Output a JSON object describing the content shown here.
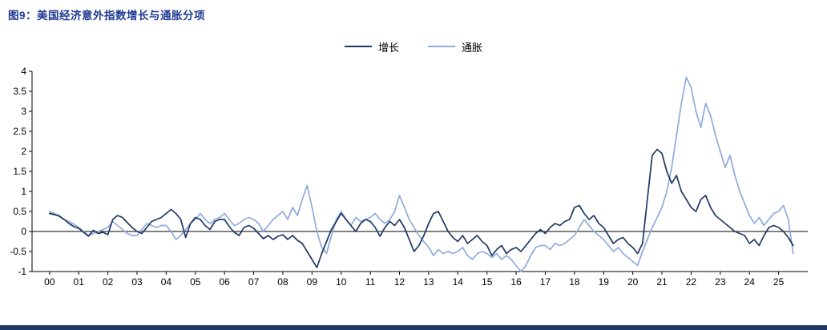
{
  "page": {
    "title": "图9：美国经济意外指数增长与通胀分项",
    "title_color": "#1e3a93",
    "footer_bar_color": "#1f3864"
  },
  "chart_data": {
    "type": "line",
    "title": "美国经济意外指数增长与通胀分项",
    "xlabel": "",
    "ylabel": "",
    "grid": false,
    "legend_position": "top-center",
    "ylim": [
      -1,
      4
    ],
    "y_ticks": [
      4,
      3.5,
      3,
      2.5,
      2,
      1.5,
      1,
      0.5,
      0,
      -0.5,
      -1
    ],
    "x_min": 1999.4,
    "x_max": 2026.0,
    "x_tick_start_year": 2000,
    "x_tick_labels": [
      "00",
      "01",
      "02",
      "03",
      "04",
      "05",
      "06",
      "07",
      "08",
      "09",
      "10",
      "11",
      "12",
      "13",
      "14",
      "15",
      "16",
      "17",
      "18",
      "19",
      "20",
      "21",
      "22",
      "23",
      "24",
      "25"
    ],
    "x_start": 2000,
    "x_step": 0.1666667,
    "series": [
      {
        "name": "增长",
        "key": "growth",
        "color": "#1f3864",
        "values": [
          0.45,
          0.42,
          0.38,
          0.3,
          0.2,
          0.12,
          0.08,
          -0.02,
          -0.12,
          0.03,
          -0.05,
          -0.02,
          -0.08,
          0.3,
          0.4,
          0.35,
          0.22,
          0.1,
          0.0,
          -0.05,
          0.1,
          0.25,
          0.3,
          0.35,
          0.45,
          0.55,
          0.45,
          0.3,
          -0.15,
          0.2,
          0.35,
          0.3,
          0.15,
          0.05,
          0.25,
          0.3,
          0.3,
          0.12,
          -0.02,
          -0.1,
          0.1,
          0.15,
          0.08,
          -0.05,
          -0.18,
          -0.1,
          -0.2,
          -0.12,
          -0.08,
          -0.2,
          -0.1,
          -0.22,
          -0.3,
          -0.5,
          -0.7,
          -0.9,
          -0.55,
          -0.25,
          0.05,
          0.25,
          0.45,
          0.3,
          0.15,
          0.0,
          0.2,
          0.3,
          0.25,
          0.1,
          -0.12,
          0.1,
          0.25,
          0.15,
          0.3,
          0.1,
          -0.2,
          -0.5,
          -0.35,
          -0.1,
          0.2,
          0.45,
          0.5,
          0.25,
          0.0,
          -0.15,
          -0.25,
          -0.1,
          -0.3,
          -0.2,
          -0.1,
          -0.25,
          -0.35,
          -0.6,
          -0.45,
          -0.35,
          -0.55,
          -0.45,
          -0.4,
          -0.5,
          -0.35,
          -0.2,
          -0.05,
          0.05,
          -0.05,
          0.1,
          0.2,
          0.15,
          0.25,
          0.3,
          0.6,
          0.65,
          0.45,
          0.3,
          0.4,
          0.2,
          0.1,
          -0.1,
          -0.3,
          -0.2,
          -0.15,
          -0.3,
          -0.4,
          -0.55,
          -0.3,
          0.8,
          1.9,
          2.05,
          1.95,
          1.5,
          1.2,
          1.4,
          1.0,
          0.8,
          0.6,
          0.5,
          0.8,
          0.9,
          0.6,
          0.4,
          0.3,
          0.2,
          0.1,
          0.0,
          -0.05,
          -0.1,
          -0.3,
          -0.2,
          -0.35,
          -0.1,
          0.1,
          0.15,
          0.1,
          0.0,
          -0.15,
          -0.35
        ]
      },
      {
        "name": "通胀",
        "key": "inflation",
        "color": "#8faadc",
        "values": [
          0.5,
          0.45,
          0.4,
          0.3,
          0.25,
          0.18,
          0.1,
          0.0,
          -0.1,
          -0.05,
          0.0,
          0.05,
          0.1,
          0.25,
          0.15,
          0.05,
          -0.05,
          -0.1,
          -0.1,
          0.05,
          0.2,
          0.15,
          0.1,
          0.15,
          0.15,
          0.0,
          -0.2,
          -0.1,
          0.05,
          0.2,
          0.3,
          0.45,
          0.3,
          0.2,
          0.3,
          0.35,
          0.45,
          0.3,
          0.15,
          0.2,
          0.3,
          0.35,
          0.3,
          0.2,
          0.0,
          0.15,
          0.3,
          0.4,
          0.5,
          0.3,
          0.6,
          0.4,
          0.8,
          1.15,
          0.6,
          0.0,
          -0.4,
          -0.55,
          -0.1,
          0.3,
          0.5,
          0.3,
          0.15,
          0.35,
          0.25,
          0.3,
          0.35,
          0.45,
          0.3,
          0.2,
          0.3,
          0.5,
          0.9,
          0.6,
          0.3,
          0.1,
          -0.1,
          -0.25,
          -0.4,
          -0.6,
          -0.45,
          -0.55,
          -0.5,
          -0.55,
          -0.5,
          -0.4,
          -0.6,
          -0.7,
          -0.55,
          -0.5,
          -0.55,
          -0.65,
          -0.55,
          -0.7,
          -0.6,
          -0.7,
          -0.85,
          -1.0,
          -0.85,
          -0.6,
          -0.4,
          -0.35,
          -0.35,
          -0.45,
          -0.3,
          -0.35,
          -0.3,
          -0.2,
          -0.1,
          0.1,
          0.3,
          0.15,
          0.0,
          -0.1,
          -0.2,
          -0.35,
          -0.5,
          -0.4,
          -0.55,
          -0.65,
          -0.75,
          -0.85,
          -0.5,
          -0.2,
          0.1,
          0.35,
          0.6,
          1.0,
          1.6,
          2.4,
          3.2,
          3.85,
          3.6,
          3.0,
          2.6,
          3.2,
          2.9,
          2.4,
          2.0,
          1.6,
          1.9,
          1.4,
          1.0,
          0.7,
          0.4,
          0.2,
          0.35,
          0.15,
          0.3,
          0.45,
          0.5,
          0.65,
          0.3,
          -0.55
        ]
      }
    ]
  }
}
